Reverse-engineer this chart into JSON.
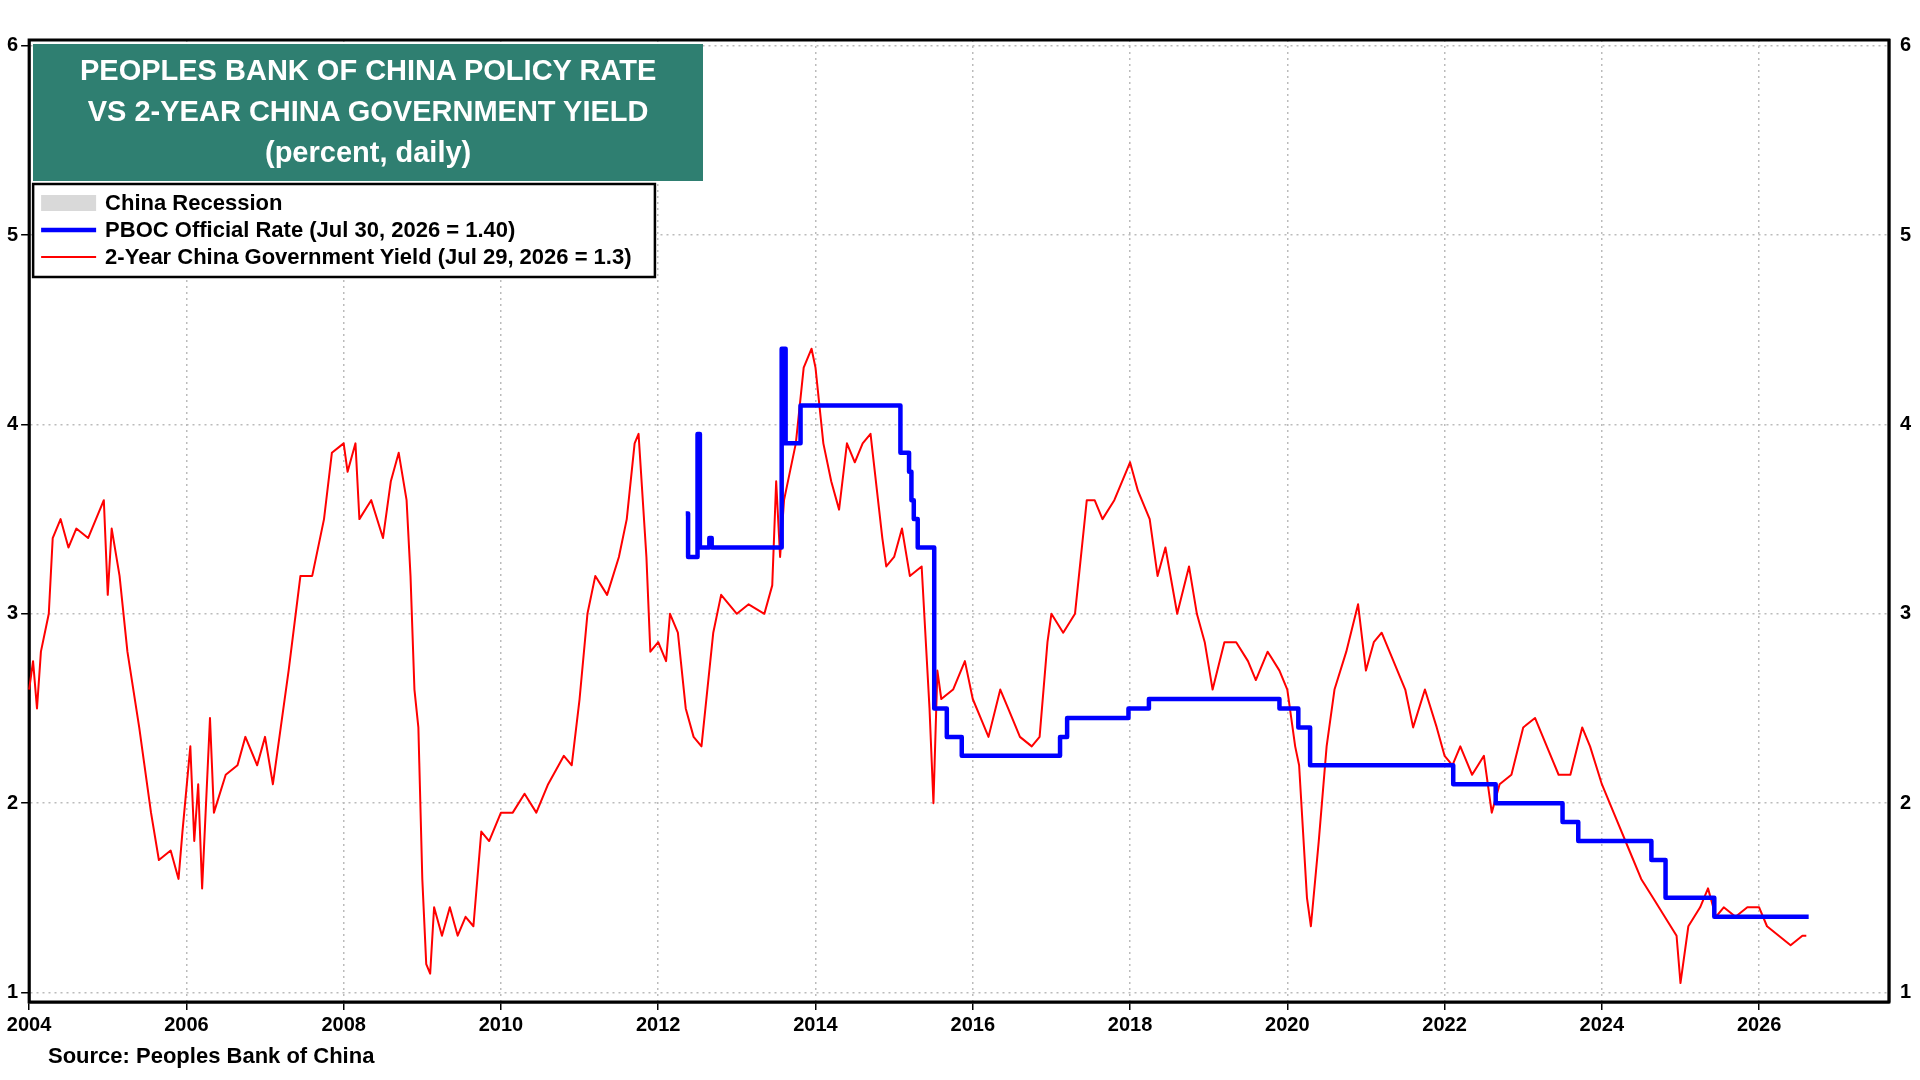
{
  "chart_data": {
    "type": "line",
    "title": "PEOPLES BANK OF CHINA POLICY RATE\nVS 2-YEAR CHINA GOVERNMENT YIELD\n(percent, daily)",
    "annotations": [
      "Source: Peoples Bank of China"
    ],
    "xlim": [
      2004,
      2027.65
    ],
    "xticks": [
      2004,
      2006,
      2008,
      2010,
      2012,
      2014,
      2016,
      2018,
      2020,
      2022,
      2024,
      2026
    ],
    "ylim": [
      0.95,
      6.03
    ],
    "yticks": [
      1,
      2,
      3,
      4,
      5,
      6
    ],
    "y2lim": [
      0.95,
      6.03
    ],
    "y2ticks": [
      1,
      2,
      3,
      4,
      5,
      6
    ],
    "grid": true,
    "legend": "top left",
    "marker": "none",
    "line_style": "solid",
    "series": [
      {
        "name": "China Recession",
        "type": "area",
        "color": "#d9d9d9"
      },
      {
        "name": "PBOC Official Rate (Jul 30, 2026 = 1.40)",
        "type": "step",
        "color": "#0000ff",
        "x": [
          2012.35,
          2012.38,
          2012.5,
          2012.53,
          2012.65,
          2012.68,
          2013.57,
          2013.62,
          2013.81,
          2015.08,
          2015.19,
          2015.22,
          2015.25,
          2015.3,
          2015.51,
          2015.67,
          2015.86,
          2017.11,
          2017.2,
          2017.98,
          2018.24,
          2019.9,
          2020.14,
          2020.29,
          2022.11,
          2022.65,
          2023.5,
          2023.7,
          2024.63,
          2024.81,
          2025.43,
          2026.63
        ],
        "values": [
          3.53,
          3.3,
          3.95,
          3.35,
          3.4,
          3.35,
          4.4,
          3.9,
          4.1,
          3.85,
          3.75,
          3.6,
          3.5,
          3.35,
          2.5,
          2.35,
          2.25,
          2.35,
          2.45,
          2.5,
          2.55,
          2.5,
          2.4,
          2.2,
          2.1,
          2.0,
          1.9,
          1.8,
          1.7,
          1.5,
          1.4,
          1.4
        ]
      },
      {
        "name": "2-Year China Government Yield (Jul 29, 2026 = 1.3)",
        "type": "line",
        "color": "#ff0000",
        "x": [
          2004.0,
          2004.05,
          2004.1,
          2004.15,
          2004.25,
          2004.3,
          2004.4,
          2004.5,
          2004.6,
          2004.75,
          2004.9,
          2004.95,
          2005.0,
          2005.05,
          2005.15,
          2005.25,
          2005.4,
          2005.55,
          2005.65,
          2005.8,
          2005.9,
          2005.95,
          2006.05,
          2006.1,
          2006.15,
          2006.2,
          2006.3,
          2006.35,
          2006.5,
          2006.65,
          2006.75,
          2006.9,
          2007.0,
          2007.1,
          2007.2,
          2007.3,
          2007.45,
          2007.6,
          2007.75,
          2007.85,
          2008.0,
          2008.05,
          2008.15,
          2008.2,
          2008.35,
          2008.5,
          2008.6,
          2008.7,
          2008.8,
          2008.85,
          2008.9,
          2008.95,
          2009.0,
          2009.05,
          2009.1,
          2009.15,
          2009.25,
          2009.35,
          2009.45,
          2009.55,
          2009.65,
          2009.75,
          2009.85,
          2010.0,
          2010.15,
          2010.3,
          2010.45,
          2010.6,
          2010.8,
          2010.9,
          2011.0,
          2011.1,
          2011.2,
          2011.35,
          2011.5,
          2011.6,
          2011.7,
          2011.75,
          2011.85,
          2011.9,
          2012.0,
          2012.1,
          2012.15,
          2012.25,
          2012.35,
          2012.45,
          2012.55,
          2012.7,
          2012.8,
          2013.0,
          2013.15,
          2013.35,
          2013.45,
          2013.5,
          2013.55,
          2013.6,
          2013.75,
          2013.85,
          2013.95,
          2014.0,
          2014.1,
          2014.2,
          2014.3,
          2014.4,
          2014.5,
          2014.6,
          2014.7,
          2014.85,
          2014.9,
          2015.0,
          2015.1,
          2015.2,
          2015.35,
          2015.45,
          2015.5,
          2015.55,
          2015.6,
          2015.75,
          2015.9,
          2016.0,
          2016.1,
          2016.2,
          2016.35,
          2016.45,
          2016.6,
          2016.75,
          2016.85,
          2016.95,
          2017.0,
          2017.15,
          2017.3,
          2017.45,
          2017.55,
          2017.65,
          2017.8,
          2017.95,
          2018.0,
          2018.1,
          2018.25,
          2018.35,
          2018.45,
          2018.6,
          2018.75,
          2018.85,
          2018.95,
          2019.05,
          2019.2,
          2019.35,
          2019.5,
          2019.6,
          2019.75,
          2019.9,
          2020.0,
          2020.1,
          2020.15,
          2020.25,
          2020.3,
          2020.4,
          2020.5,
          2020.6,
          2020.75,
          2020.9,
          2021.0,
          2021.1,
          2021.2,
          2021.35,
          2021.5,
          2021.6,
          2021.75,
          2021.9,
          2022.0,
          2022.1,
          2022.2,
          2022.35,
          2022.5,
          2022.6,
          2022.7,
          2022.85,
          2023.0,
          2023.15,
          2023.25,
          2023.45,
          2023.6,
          2023.75,
          2023.85,
          2024.0,
          2024.15,
          2024.35,
          2024.5,
          2024.65,
          2024.8,
          2024.95,
          2025.0,
          2025.1,
          2025.25,
          2025.35,
          2025.45,
          2025.55,
          2025.7,
          2025.85,
          2026.0,
          2026.1,
          2026.25,
          2026.4,
          2026.55,
          2026.6
        ],
        "values": [
          2.6,
          2.75,
          2.5,
          2.8,
          3.0,
          3.4,
          3.5,
          3.35,
          3.45,
          3.4,
          3.55,
          3.6,
          3.1,
          3.45,
          3.2,
          2.8,
          2.4,
          1.95,
          1.7,
          1.75,
          1.6,
          1.85,
          2.3,
          1.8,
          2.1,
          1.55,
          2.45,
          1.95,
          2.15,
          2.2,
          2.35,
          2.2,
          2.35,
          2.1,
          2.4,
          2.7,
          3.2,
          3.2,
          3.5,
          3.85,
          3.9,
          3.75,
          3.9,
          3.5,
          3.6,
          3.4,
          3.7,
          3.85,
          3.6,
          3.2,
          2.6,
          2.4,
          1.6,
          1.15,
          1.1,
          1.45,
          1.3,
          1.45,
          1.3,
          1.4,
          1.35,
          1.85,
          1.8,
          1.95,
          1.95,
          2.05,
          1.95,
          2.1,
          2.25,
          2.2,
          2.55,
          3.0,
          3.2,
          3.1,
          3.3,
          3.5,
          3.9,
          3.95,
          3.3,
          2.8,
          2.85,
          2.75,
          3.0,
          2.9,
          2.5,
          2.35,
          2.3,
          2.9,
          3.1,
          3.0,
          3.05,
          3.0,
          3.15,
          3.7,
          3.3,
          3.6,
          3.9,
          4.3,
          4.4,
          4.3,
          3.9,
          3.7,
          3.55,
          3.9,
          3.8,
          3.9,
          3.95,
          3.4,
          3.25,
          3.3,
          3.45,
          3.2,
          3.25,
          2.5,
          2.0,
          2.7,
          2.55,
          2.6,
          2.75,
          2.55,
          2.45,
          2.35,
          2.6,
          2.5,
          2.35,
          2.3,
          2.35,
          2.85,
          3.0,
          2.9,
          3.0,
          3.6,
          3.6,
          3.5,
          3.6,
          3.75,
          3.8,
          3.65,
          3.5,
          3.2,
          3.35,
          3.0,
          3.25,
          3.0,
          2.85,
          2.6,
          2.85,
          2.85,
          2.75,
          2.65,
          2.8,
          2.7,
          2.6,
          2.3,
          2.2,
          1.5,
          1.35,
          1.8,
          2.3,
          2.6,
          2.8,
          3.05,
          2.7,
          2.85,
          2.9,
          2.75,
          2.6,
          2.4,
          2.6,
          2.4,
          2.25,
          2.2,
          2.3,
          2.15,
          2.25,
          1.95,
          2.1,
          2.15,
          2.4,
          2.45,
          2.35,
          2.15,
          2.15,
          2.4,
          2.3,
          2.1,
          1.95,
          1.75,
          1.6,
          1.5,
          1.4,
          1.3,
          1.05,
          1.35,
          1.45,
          1.55,
          1.4,
          1.45,
          1.4,
          1.45,
          1.45,
          1.35,
          1.3,
          1.25,
          1.3,
          1.3
        ]
      }
    ]
  }
}
